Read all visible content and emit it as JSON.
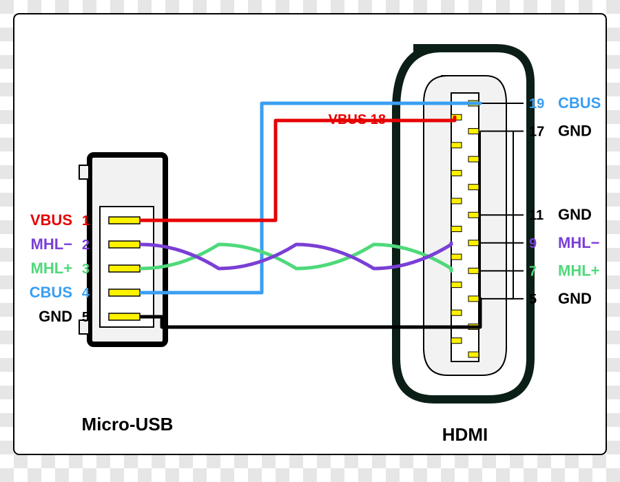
{
  "type": "wiring-diagram",
  "background": {
    "checker_size": 20,
    "checker_colors": [
      "#ffffff",
      "#e6e6e6"
    ]
  },
  "colors": {
    "vbus": "#e60000",
    "mhl_minus": "#7a3fd6",
    "mhl_plus": "#4fd97a",
    "cbus": "#3a9ef2",
    "gnd": "#000000",
    "pin_fill": "#fff200",
    "pin_stroke": "#000000",
    "connector_stroke": "#000000",
    "connector_inner_fill": "#f2f2f2",
    "hdmi_outline": "#0b1f17",
    "panel_fill": "#ffffff",
    "panel_stroke": "#000000"
  },
  "stroke_widths": {
    "wire": 5,
    "connector": 8,
    "connector_thin": 2,
    "hdmi_outline": 12
  },
  "micro_usb": {
    "title": "Micro-USB",
    "pins": [
      {
        "n": "1",
        "label": "VBUS",
        "color_key": "vbus"
      },
      {
        "n": "2",
        "label": "MHL−",
        "color_key": "mhl_minus"
      },
      {
        "n": "3",
        "label": "MHL+",
        "color_key": "mhl_plus"
      },
      {
        "n": "4",
        "label": "CBUS",
        "color_key": "cbus"
      },
      {
        "n": "5",
        "label": "GND",
        "color_key": "gnd"
      }
    ]
  },
  "hdmi": {
    "title": "HDMI",
    "right_labels": [
      {
        "n": "19",
        "label": "CBUS",
        "color_key": "cbus"
      },
      {
        "n": "17",
        "label": "GND",
        "color_key": "gnd"
      },
      {
        "n": "11",
        "label": "GND",
        "color_key": "gnd"
      },
      {
        "n": "9",
        "label": "MHL−",
        "color_key": "mhl_minus"
      },
      {
        "n": "7",
        "label": "MHL+",
        "color_key": "mhl_plus"
      },
      {
        "n": "5",
        "label": "GND",
        "color_key": "gnd"
      }
    ],
    "vbus_callout": {
      "text": "VBUS 18",
      "color_key": "vbus"
    }
  }
}
